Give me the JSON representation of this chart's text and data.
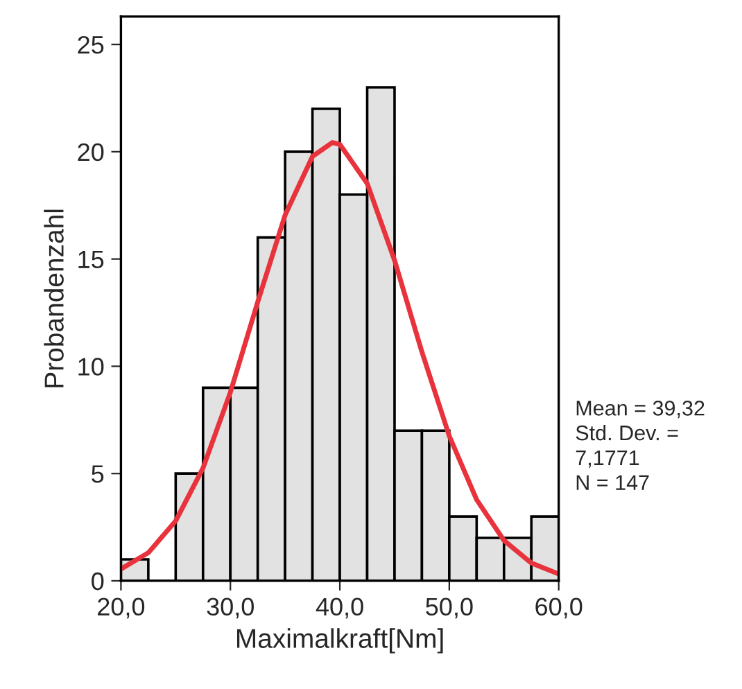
{
  "chart_data": {
    "type": "histogram",
    "xlabel": "Maximalkraft[Nm]",
    "ylabel": "Probandenzahl",
    "bins": [
      20,
      22.5,
      25,
      27.5,
      30,
      32.5,
      35,
      37.5,
      40,
      42.5,
      45,
      47.5,
      50,
      52.5,
      55,
      57.5,
      60
    ],
    "values": [
      1,
      0,
      5,
      9,
      9,
      16,
      20,
      22,
      18,
      23,
      7,
      7,
      3,
      2,
      2,
      3
    ],
    "color": "#e2e2e2",
    "series": [
      {
        "type": "line",
        "color": "#e8323c",
        "x": [
          20,
          22.5,
          25,
          27.5,
          30,
          32.5,
          35,
          37.5,
          39.32,
          40,
          42.5,
          45,
          47.5,
          50,
          52.5,
          55,
          57.5,
          60
        ],
        "values": [
          0.55,
          1.31,
          2.79,
          5.26,
          8.79,
          13.0,
          17.05,
          19.78,
          20.43,
          20.34,
          18.52,
          14.94,
          10.67,
          6.75,
          3.78,
          1.88,
          0.83,
          0.32
        ]
      }
    ],
    "xlim": [
      20,
      60
    ],
    "xticks": [
      {
        "value": 20,
        "label": "20,0"
      },
      {
        "value": 30,
        "label": "30,0"
      },
      {
        "value": 40,
        "label": "40,0"
      },
      {
        "value": 50,
        "label": "50,0"
      },
      {
        "value": 60,
        "label": "60,0"
      }
    ],
    "ylim": [
      0,
      26.3
    ],
    "yticks": [
      0,
      5,
      10,
      15,
      20,
      25
    ],
    "grid": false,
    "annotations": [
      "Mean = 39,32",
      "Std. Dev. =",
      "7,1771",
      "N = 147"
    ]
  }
}
